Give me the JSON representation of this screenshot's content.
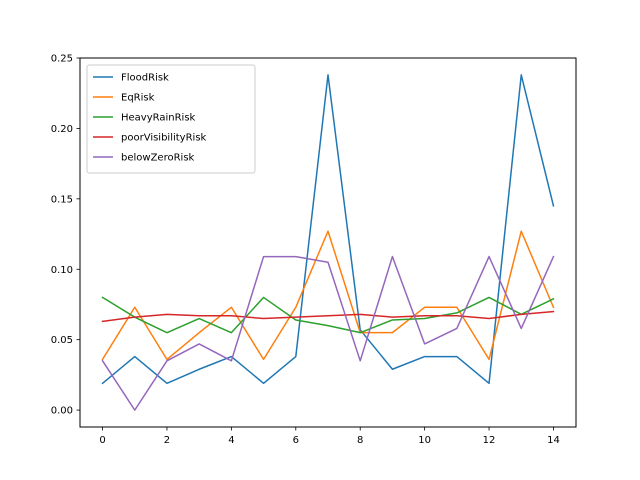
{
  "chart_data": {
    "type": "line",
    "title": "",
    "xlabel": "",
    "ylabel": "",
    "xlim": [
      -0.7,
      14.7
    ],
    "ylim": [
      -0.012,
      0.25
    ],
    "xticks": [
      0,
      2,
      4,
      6,
      8,
      10,
      12,
      14
    ],
    "xtick_labels": [
      "0",
      "2",
      "4",
      "6",
      "8",
      "10",
      "12",
      "14"
    ],
    "yticks": [
      0.0,
      0.05,
      0.1,
      0.15,
      0.2,
      0.25
    ],
    "ytick_labels": [
      "0.00",
      "0.05",
      "0.10",
      "0.15",
      "0.20",
      "0.25"
    ],
    "grid": false,
    "legend_position": "top-left",
    "x": [
      0,
      1,
      2,
      3,
      4,
      5,
      6,
      7,
      8,
      9,
      10,
      11,
      12,
      13,
      14
    ],
    "series": [
      {
        "name": "FloodRisk",
        "color": "#1f77b4",
        "values": [
          0.019,
          0.038,
          0.019,
          0.029,
          0.038,
          0.019,
          0.038,
          0.238,
          0.057,
          0.029,
          0.038,
          0.038,
          0.019,
          0.238,
          0.145
        ]
      },
      {
        "name": "EqRisk",
        "color": "#ff7f0e",
        "values": [
          0.036,
          0.073,
          0.036,
          0.055,
          0.073,
          0.036,
          0.073,
          0.127,
          0.055,
          0.055,
          0.073,
          0.073,
          0.036,
          0.127,
          0.073
        ]
      },
      {
        "name": "HeavyRainRisk",
        "color": "#2ca02c",
        "values": [
          0.08,
          0.066,
          0.055,
          0.065,
          0.055,
          0.08,
          0.064,
          0.06,
          0.055,
          0.064,
          0.065,
          0.069,
          0.08,
          0.068,
          0.079
        ]
      },
      {
        "name": "poorVisibilityRisk",
        "color": "#d62728",
        "values": [
          0.063,
          0.066,
          0.068,
          0.067,
          0.067,
          0.065,
          0.066,
          0.067,
          0.068,
          0.066,
          0.067,
          0.067,
          0.065,
          0.068,
          0.07
        ]
      },
      {
        "name": "belowZeroRisk",
        "color": "#9467bd",
        "values": [
          0.035,
          0.0,
          0.035,
          0.047,
          0.035,
          0.109,
          0.109,
          0.105,
          0.035,
          0.109,
          0.047,
          0.058,
          0.109,
          0.058,
          0.109
        ]
      }
    ]
  }
}
